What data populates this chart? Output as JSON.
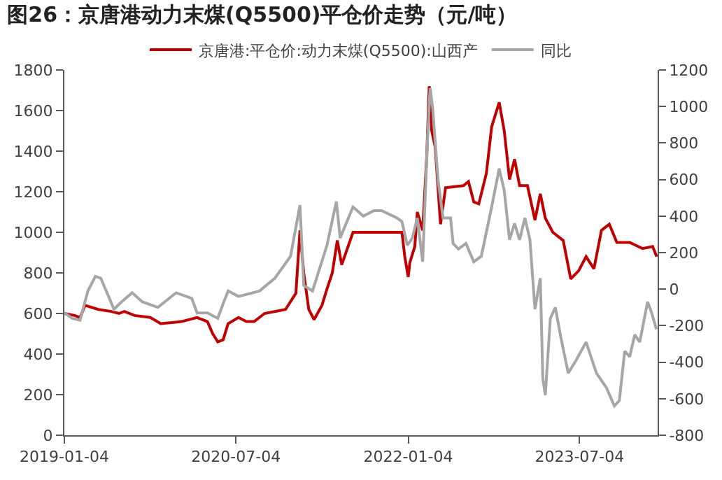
{
  "chart_data": {
    "type": "line",
    "title": "图26：京唐港动力末煤(Q5500)平仓价走势（元/吨）",
    "xlim": [
      "2019-01-04",
      "2024-03-09"
    ],
    "xticks": [
      "2019-01-04",
      "2020-07-04",
      "2022-01-04",
      "2023-07-04"
    ],
    "ylim": [
      0,
      1800
    ],
    "yticks": [
      0,
      200,
      400,
      600,
      800,
      1000,
      1200,
      1400,
      1600,
      1800
    ],
    "y2lim": [
      -800,
      1200
    ],
    "y2ticks": [
      -800,
      -600,
      -400,
      -200,
      0,
      200,
      400,
      600,
      800,
      1000,
      1200
    ],
    "legend": "top",
    "marker": "none",
    "line_style": "solid",
    "series": [
      {
        "name": "京唐港:平仓价:动力末煤(Q5500):山西产",
        "color": "#c00000",
        "axis": "y",
        "x": [
          "2019-01-04",
          "2019-02-06",
          "2019-02-23",
          "2019-03-11",
          "2019-04-22",
          "2019-06-02",
          "2019-06-27",
          "2019-07-14",
          "2019-08-16",
          "2019-10-05",
          "2019-11-07",
          "2020-01-12",
          "2020-03-02",
          "2020-04-04",
          "2020-04-21",
          "2020-05-07",
          "2020-05-24",
          "2020-06-09",
          "2020-07-12",
          "2020-08-06",
          "2020-08-31",
          "2020-10-03",
          "2020-12-09",
          "2021-01-11",
          "2021-01-24",
          "2021-02-05",
          "2021-02-21",
          "2021-03-10",
          "2021-04-04",
          "2021-04-20",
          "2021-05-07",
          "2021-05-23",
          "2021-06-06",
          "2021-07-12",
          "2021-08-31",
          "2021-10-11",
          "2021-12-15",
          "2021-12-24",
          "2022-01-04",
          "2022-01-09",
          "2022-01-25",
          "2022-02-02",
          "2022-02-19",
          "2022-03-04",
          "2022-03-12",
          "2022-03-20",
          "2022-03-31",
          "2022-04-17",
          "2022-05-03",
          "2022-06-29",
          "2022-07-15",
          "2022-08-01",
          "2022-08-17",
          "2022-09-10",
          "2022-09-27",
          "2022-10-21",
          "2022-11-06",
          "2022-11-23",
          "2022-12-09",
          "2022-12-25",
          "2023-01-19",
          "2023-02-12",
          "2023-03-01",
          "2023-03-17",
          "2023-04-10",
          "2023-05-13",
          "2023-06-06",
          "2023-07-01",
          "2023-07-25",
          "2023-08-19",
          "2023-09-12",
          "2023-10-07",
          "2023-10-31",
          "2023-12-11",
          "2024-01-21",
          "2024-02-22",
          "2024-03-06"
        ],
        "values": [
          600,
          590,
          580,
          640,
          620,
          610,
          600,
          610,
          590,
          580,
          550,
          560,
          580,
          560,
          500,
          460,
          470,
          550,
          580,
          560,
          560,
          600,
          620,
          700,
          1010,
          800,
          620,
          570,
          640,
          720,
          800,
          960,
          840,
          1000,
          1000,
          1000,
          1000,
          880,
          780,
          850,
          930,
          1100,
          1010,
          1370,
          1720,
          1500,
          1420,
          1040,
          1220,
          1230,
          1250,
          1150,
          1140,
          1290,
          1520,
          1640,
          1500,
          1260,
          1360,
          1230,
          1230,
          1060,
          1190,
          1070,
          1000,
          960,
          770,
          810,
          880,
          820,
          1010,
          1040,
          950,
          950,
          920,
          930,
          880
        ]
      },
      {
        "name": "同比",
        "color": "#a6a6a6",
        "axis": "y2",
        "x": [
          "2019-01-04",
          "2019-01-29",
          "2019-02-23",
          "2019-03-20",
          "2019-04-13",
          "2019-04-30",
          "2019-05-25",
          "2019-06-11",
          "2019-07-05",
          "2019-08-08",
          "2019-09-10",
          "2019-10-29",
          "2019-12-26",
          "2020-02-14",
          "2020-03-02",
          "2020-04-04",
          "2020-05-07",
          "2020-05-24",
          "2020-06-09",
          "2020-07-12",
          "2020-09-17",
          "2020-11-05",
          "2020-12-25",
          "2021-01-24",
          "2021-02-05",
          "2021-03-05",
          "2021-04-20",
          "2021-05-20",
          "2021-06-01",
          "2021-07-12",
          "2021-08-14",
          "2021-09-17",
          "2021-10-11",
          "2021-11-29",
          "2021-12-15",
          "2022-01-01",
          "2022-01-17",
          "2022-02-02",
          "2022-02-19",
          "2022-03-07",
          "2022-03-15",
          "2022-03-23",
          "2022-04-09",
          "2022-04-25",
          "2022-05-19",
          "2022-05-27",
          "2022-06-13",
          "2022-07-07",
          "2022-08-01",
          "2022-08-25",
          "2022-09-27",
          "2022-10-21",
          "2022-11-06",
          "2022-11-23",
          "2022-12-09",
          "2022-12-25",
          "2023-01-11",
          "2023-01-27",
          "2023-02-12",
          "2023-03-01",
          "2023-03-09",
          "2023-03-17",
          "2023-04-02",
          "2023-04-18",
          "2023-05-05",
          "2023-05-29",
          "2023-06-23",
          "2023-07-25",
          "2023-08-27",
          "2023-09-28",
          "2023-10-23",
          "2023-11-08",
          "2023-11-25",
          "2023-12-11",
          "2023-12-27",
          "2024-01-12",
          "2024-02-06",
          "2024-02-19",
          "2024-03-05"
        ],
        "values": [
          -130,
          -160,
          -170,
          -10,
          70,
          60,
          -40,
          -110,
          -70,
          -20,
          -70,
          -100,
          -20,
          -50,
          -130,
          -130,
          -160,
          -80,
          -10,
          -40,
          -10,
          60,
          180,
          460,
          20,
          -10,
          240,
          480,
          280,
          450,
          400,
          430,
          430,
          390,
          370,
          240,
          280,
          390,
          150,
          840,
          1100,
          990,
          600,
          390,
          390,
          250,
          220,
          250,
          150,
          180,
          450,
          660,
          540,
          270,
          360,
          270,
          390,
          270,
          -110,
          60,
          -490,
          -580,
          -160,
          -100,
          -260,
          -460,
          -390,
          -290,
          -460,
          -540,
          -640,
          -610,
          -340,
          -370,
          -250,
          -290,
          -70,
          -130,
          -220
        ]
      }
    ]
  }
}
